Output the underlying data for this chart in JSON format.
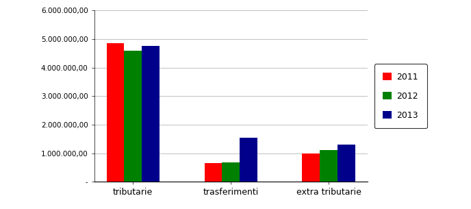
{
  "categories": [
    "tributarie",
    "trasferimenti",
    "extra tributarie"
  ],
  "series": {
    "2011": [
      4850000,
      650000,
      1000000
    ],
    "2012": [
      4600000,
      680000,
      1100000
    ],
    "2013": [
      4750000,
      1550000,
      1300000
    ]
  },
  "colors": {
    "2011": "#FF0000",
    "2012": "#008000",
    "2013": "#00008B"
  },
  "ylim": [
    0,
    6000000
  ],
  "yticks": [
    0,
    1000000,
    2000000,
    3000000,
    4000000,
    5000000,
    6000000
  ],
  "ytick_labels": [
    "-",
    "1.000.000,00",
    "2.000.000,00",
    "3.000.000,00",
    "4.000.000,00",
    "5.000.000,00",
    "6.000.000,00"
  ],
  "bar_width": 0.18,
  "legend_labels": [
    "2011",
    "2012",
    "2013"
  ],
  "background_color": "#FFFFFF",
  "plot_bg_color": "#FFFFFF",
  "grid_color": "#C0C0C0",
  "legend_box_color": "#FFFFFF",
  "legend_border_color": "#000000",
  "spine_color": "#000000",
  "tick_label_fontsize": 7.5,
  "xtick_label_fontsize": 9
}
